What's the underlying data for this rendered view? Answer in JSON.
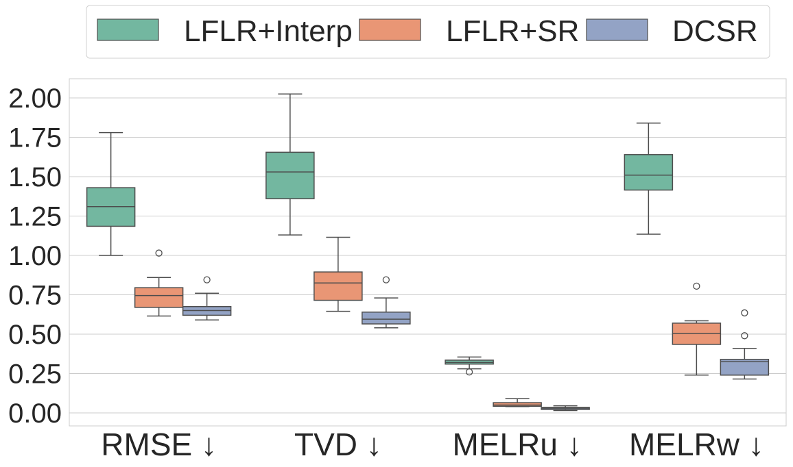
{
  "chart_data": {
    "type": "box",
    "title": "",
    "xlabel": "",
    "ylabel": "",
    "ylim": [
      -0.08,
      2.13
    ],
    "yticks": [
      "0.00",
      "0.25",
      "0.50",
      "0.75",
      "1.00",
      "1.25",
      "1.50",
      "1.75",
      "2.00"
    ],
    "grid": "horizontal",
    "legend_position": "top-center",
    "categories": [
      "RMSE ↓",
      "TVD ↓",
      "MELRu ↓",
      "MELRw ↓"
    ],
    "series": [
      {
        "name": "LFLR+Interp",
        "color": "#73b7a0",
        "boxes": [
          {
            "whisker_low": 1.0,
            "q1": 1.185,
            "median": 1.31,
            "q3": 1.43,
            "whisker_high": 1.78,
            "outliers": []
          },
          {
            "whisker_low": 1.13,
            "q1": 1.36,
            "median": 1.53,
            "q3": 1.655,
            "whisker_high": 2.025,
            "outliers": []
          },
          {
            "whisker_low": 0.28,
            "q1": 0.31,
            "median": 0.32,
            "q3": 0.335,
            "whisker_high": 0.355,
            "outliers": [
              0.26
            ]
          },
          {
            "whisker_low": 1.135,
            "q1": 1.415,
            "median": 1.51,
            "q3": 1.64,
            "whisker_high": 1.84,
            "outliers": []
          }
        ]
      },
      {
        "name": "LFLR+SR",
        "color": "#e99675",
        "boxes": [
          {
            "whisker_low": 0.615,
            "q1": 0.67,
            "median": 0.745,
            "q3": 0.795,
            "whisker_high": 0.86,
            "outliers": [
              1.015
            ]
          },
          {
            "whisker_low": 0.645,
            "q1": 0.715,
            "median": 0.825,
            "q3": 0.895,
            "whisker_high": 1.115,
            "outliers": []
          },
          {
            "whisker_low": 0.04,
            "q1": 0.042,
            "median": 0.05,
            "q3": 0.065,
            "whisker_high": 0.09,
            "outliers": []
          },
          {
            "whisker_low": 0.24,
            "q1": 0.435,
            "median": 0.505,
            "q3": 0.57,
            "whisker_high": 0.585,
            "outliers": [
              0.805
            ]
          }
        ]
      },
      {
        "name": "DCSR",
        "color": "#93a3c5",
        "boxes": [
          {
            "whisker_low": 0.59,
            "q1": 0.62,
            "median": 0.65,
            "q3": 0.675,
            "whisker_high": 0.76,
            "outliers": [
              0.845
            ]
          },
          {
            "whisker_low": 0.54,
            "q1": 0.565,
            "median": 0.595,
            "q3": 0.64,
            "whisker_high": 0.73,
            "outliers": [
              0.845
            ]
          },
          {
            "whisker_low": 0.015,
            "q1": 0.022,
            "median": 0.03,
            "q3": 0.035,
            "whisker_high": 0.045,
            "outliers": []
          },
          {
            "whisker_low": 0.215,
            "q1": 0.24,
            "median": 0.325,
            "q3": 0.34,
            "whisker_high": 0.41,
            "outliers": [
              0.49,
              0.635
            ]
          }
        ]
      }
    ]
  }
}
